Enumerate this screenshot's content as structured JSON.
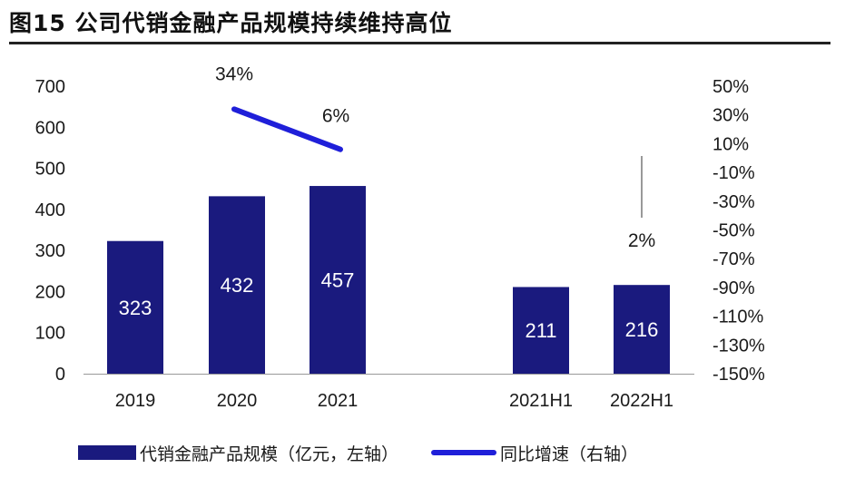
{
  "title": "图15 公司代销金融产品规模持续维持高位",
  "colors": {
    "bar": "#1a1a7e",
    "line": "#1f1fd9",
    "axis": "#999999",
    "text": "#1a1a1a"
  },
  "chart_data": {
    "type": "bar",
    "categories": [
      "2019",
      "2020",
      "2021",
      "2021H1",
      "2022H1"
    ],
    "series": [
      {
        "name": "代销金融产品规模（亿元，左轴）",
        "type": "bar",
        "axis": "left",
        "values": [
          323,
          432,
          457,
          211,
          216
        ],
        "labels": [
          "323",
          "432",
          "457",
          "211",
          "216"
        ]
      },
      {
        "name": "同比增速（右轴）",
        "type": "line",
        "axis": "right",
        "points": [
          {
            "category": "2020",
            "value": 34,
            "label": "34%"
          },
          {
            "category": "2021",
            "value": 6,
            "label": "6%"
          },
          {
            "category": "2022H1",
            "value": 2,
            "label": "2%"
          }
        ]
      }
    ],
    "y_left": {
      "range": [
        0,
        700
      ],
      "ticks": [
        "0",
        "100",
        "200",
        "300",
        "400",
        "500",
        "600",
        "700"
      ]
    },
    "y_right": {
      "range": [
        -150,
        50
      ],
      "ticks": [
        "50%",
        "30%",
        "10%",
        "-10%",
        "-30%",
        "-50%",
        "-70%",
        "-90%",
        "-110%",
        "-130%",
        "-150%"
      ]
    },
    "grid": false,
    "legend_position": "bottom"
  },
  "legend": {
    "bar_label": "代销金融产品规模（亿元，左轴）",
    "line_label": "同比增速（右轴）"
  }
}
